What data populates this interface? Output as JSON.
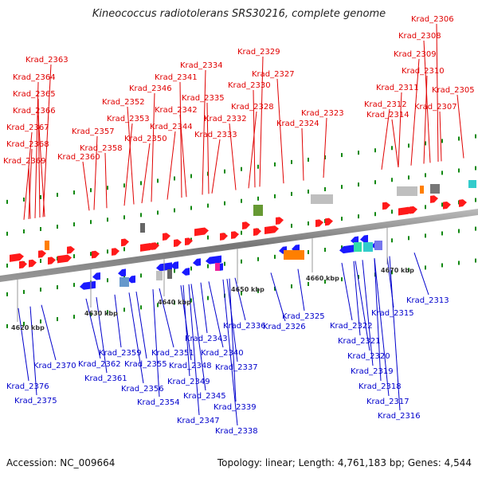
{
  "title": "Kineococcus radiotolerans SRS30216, complete genome",
  "footer": {
    "accession": "Accession: NC_009664",
    "summary": "Topology: linear; Length: 4,761,183 bp; Genes: 4,544"
  },
  "colors": {
    "forward_label": "#e00000",
    "reverse_label": "#0000cc",
    "forward_gene": "#ff1a1a",
    "reverse_gene": "#1a1aff",
    "rna_gene": "#ff7f00",
    "pseudo_gene": "#bfbfbf",
    "axis": "#888888",
    "tick": "#118811"
  },
  "scale_labels": [
    "4620 kbp",
    "4630 kbp",
    "4640 kbp",
    "4650 kbp",
    "4660 kbp",
    "4670 kbp"
  ],
  "forward_labels": [
    "Krad_2363",
    "Krad_2364",
    "Krad_2365",
    "Krad_2366",
    "Krad_2367",
    "Krad_2368",
    "Krad_2369",
    "Krad_2352",
    "Krad_2353",
    "Krad_2357",
    "Krad_2358",
    "Krad_2360",
    "Krad_2350",
    "Krad_2346",
    "Krad_2341",
    "Krad_2342",
    "Krad_2344",
    "Krad_2334",
    "Krad_2335",
    "Krad_2332",
    "Krad_2333",
    "Krad_2329",
    "Krad_2330",
    "Krad_2327",
    "Krad_2328",
    "Krad_2323",
    "Krad_2324",
    "Krad_2314",
    "Krad_2312",
    "Krad_2311",
    "Krad_2306",
    "Krad_2308",
    "Krad_2309",
    "Krad_2310",
    "Krad_2307",
    "Krad_2305"
  ],
  "reverse_labels": [
    "Krad_2370",
    "Krad_2376",
    "Krad_2375",
    "Krad_2362",
    "Krad_2361",
    "Krad_2359",
    "Krad_2356",
    "Krad_2355",
    "Krad_2354",
    "Krad_2351",
    "Krad_2348",
    "Krad_2349",
    "Krad_2345",
    "Krad_2347",
    "Krad_2343",
    "Krad_2340",
    "Krad_2337",
    "Krad_2339",
    "Krad_2338",
    "Krad_2336",
    "Krad_2325",
    "Krad_2326",
    "Krad_2322",
    "Krad_2321",
    "Krad_2320",
    "Krad_2319",
    "Krad_2318",
    "Krad_2317",
    "Krad_2316",
    "Krad_2315",
    "Krad_2313"
  ]
}
